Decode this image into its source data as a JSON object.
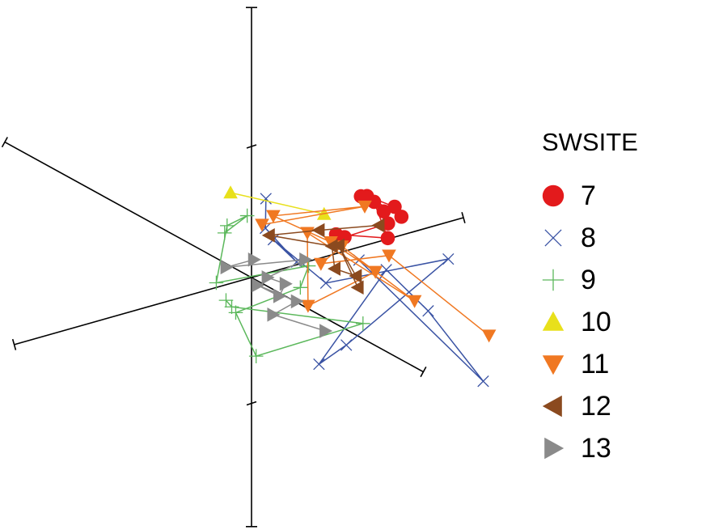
{
  "chart_data": {
    "type": "scatter",
    "subtype": "3d-line-scatter",
    "title": "",
    "legend": {
      "title": "SWSITE",
      "placement": "right"
    },
    "axes": {
      "x_label": "",
      "y_label": "",
      "z_label": "",
      "tick_labels": false,
      "grid": false
    },
    "series": [
      {
        "name": "7",
        "color": "#e31a1c",
        "marker": "circle",
        "points": [
          [
            0.44,
            0.31,
            0.25
          ],
          [
            0.45,
            0.11,
            0.25
          ],
          [
            0.52,
            0.18,
            0.22
          ],
          [
            0.46,
            0.19,
            0.22
          ],
          [
            0.42,
            0.26,
            0.21
          ],
          [
            0.37,
            0.08,
            0.1
          ],
          [
            0.33,
            0.08,
            0.12
          ],
          [
            0.41,
            0.27,
            0.16
          ],
          [
            0.38,
            0.23,
            0.29
          ],
          [
            0.43,
            0.1,
            0.25
          ]
        ]
      },
      {
        "name": "8",
        "color": "#3a53a4",
        "marker": "x",
        "points": [
          [
            0.18,
            -0.13,
            0.21
          ],
          [
            0.1,
            -0.04,
            0.15
          ],
          [
            0.17,
            0.05,
            0.04
          ],
          [
            0.06,
            0.05,
            0.15
          ],
          [
            0.23,
            0.14,
            -0.02
          ],
          [
            0.48,
            0.52,
            0.16
          ],
          [
            0.18,
            0.31,
            -0.18
          ],
          [
            0.12,
            0.23,
            -0.27
          ],
          [
            0.36,
            0.32,
            0.07
          ],
          [
            0.48,
            0.41,
            -0.08
          ],
          [
            0.55,
            0.63,
            -0.28
          ],
          [
            0.3,
            0.24,
            0.09
          ]
        ]
      },
      {
        "name": "9",
        "color": "#5cb85c",
        "marker": "plus",
        "points": [
          [
            0.08,
            -0.24,
            0.06
          ],
          [
            0.04,
            -0.07,
            0.2
          ],
          [
            0.04,
            -0.18,
            0.12
          ],
          [
            -0.08,
            -0.1,
            -0.04
          ],
          [
            0.14,
            0.15,
            0.07
          ],
          [
            0.17,
            0.07,
            -0.05
          ],
          [
            -0.04,
            -0.04,
            -0.14
          ],
          [
            -0.03,
            0.06,
            -0.27
          ],
          [
            0.25,
            0.32,
            -0.11
          ],
          [
            0.01,
            -0.12,
            -0.16
          ],
          [
            -0.06,
            -0.07,
            -0.1
          ]
        ]
      },
      {
        "name": "10",
        "color": "#e8e01b",
        "marker": "triangle-up",
        "points": [
          [
            -0.03,
            -0.08,
            0.3
          ],
          [
            0.17,
            0.2,
            0.28
          ]
        ]
      },
      {
        "name": "11",
        "color": "#f07822",
        "marker": "triangle-down",
        "points": [
          [
            0.11,
            -0.07,
            0.15
          ],
          [
            0.31,
            0.26,
            0.3
          ],
          [
            0.12,
            -0.02,
            0.2
          ],
          [
            0.21,
            0.19,
            0.16
          ],
          [
            0.3,
            0.33,
            0.08
          ],
          [
            0.12,
            0.17,
            -0.07
          ],
          [
            0.16,
            0.12,
            0.18
          ],
          [
            0.39,
            0.44,
            -0.01
          ],
          [
            0.28,
            0.17,
            0.12
          ],
          [
            0.25,
            0.09,
            0.03
          ],
          [
            0.39,
            0.3,
            0.11
          ],
          [
            0.56,
            0.65,
            -0.1
          ]
        ]
      },
      {
        "name": "12",
        "color": "#8b4a1f",
        "marker": "triangle-left",
        "points": [
          [
            0.35,
            0.29,
            0.23
          ],
          [
            0.24,
            0.09,
            0.16
          ],
          [
            0.16,
            -0.09,
            0.09
          ],
          [
            0.25,
            0.15,
            0.12
          ],
          [
            0.22,
            0.2,
            0.06
          ],
          [
            0.26,
            0.27,
            0.05
          ],
          [
            0.23,
            0.21,
            0.15
          ],
          [
            0.26,
            0.28,
            0.01
          ]
        ]
      },
      {
        "name": "13",
        "color": "#8a8a8a",
        "marker": "triangle-right",
        "points": [
          [
            0.02,
            -0.01,
            0.06
          ],
          [
            -0.05,
            -0.08,
            0.02
          ],
          [
            0.15,
            0.12,
            0.08
          ],
          [
            0.11,
            -0.04,
            -0.04
          ],
          [
            0.1,
            0.07,
            -0.02
          ],
          [
            0.07,
            0.07,
            -0.06
          ],
          [
            0.02,
            0.01,
            -0.03
          ],
          [
            0.11,
            0.12,
            -0.07
          ],
          [
            0.05,
            0.06,
            -0.13
          ],
          [
            0.15,
            0.23,
            -0.15
          ]
        ]
      }
    ]
  }
}
